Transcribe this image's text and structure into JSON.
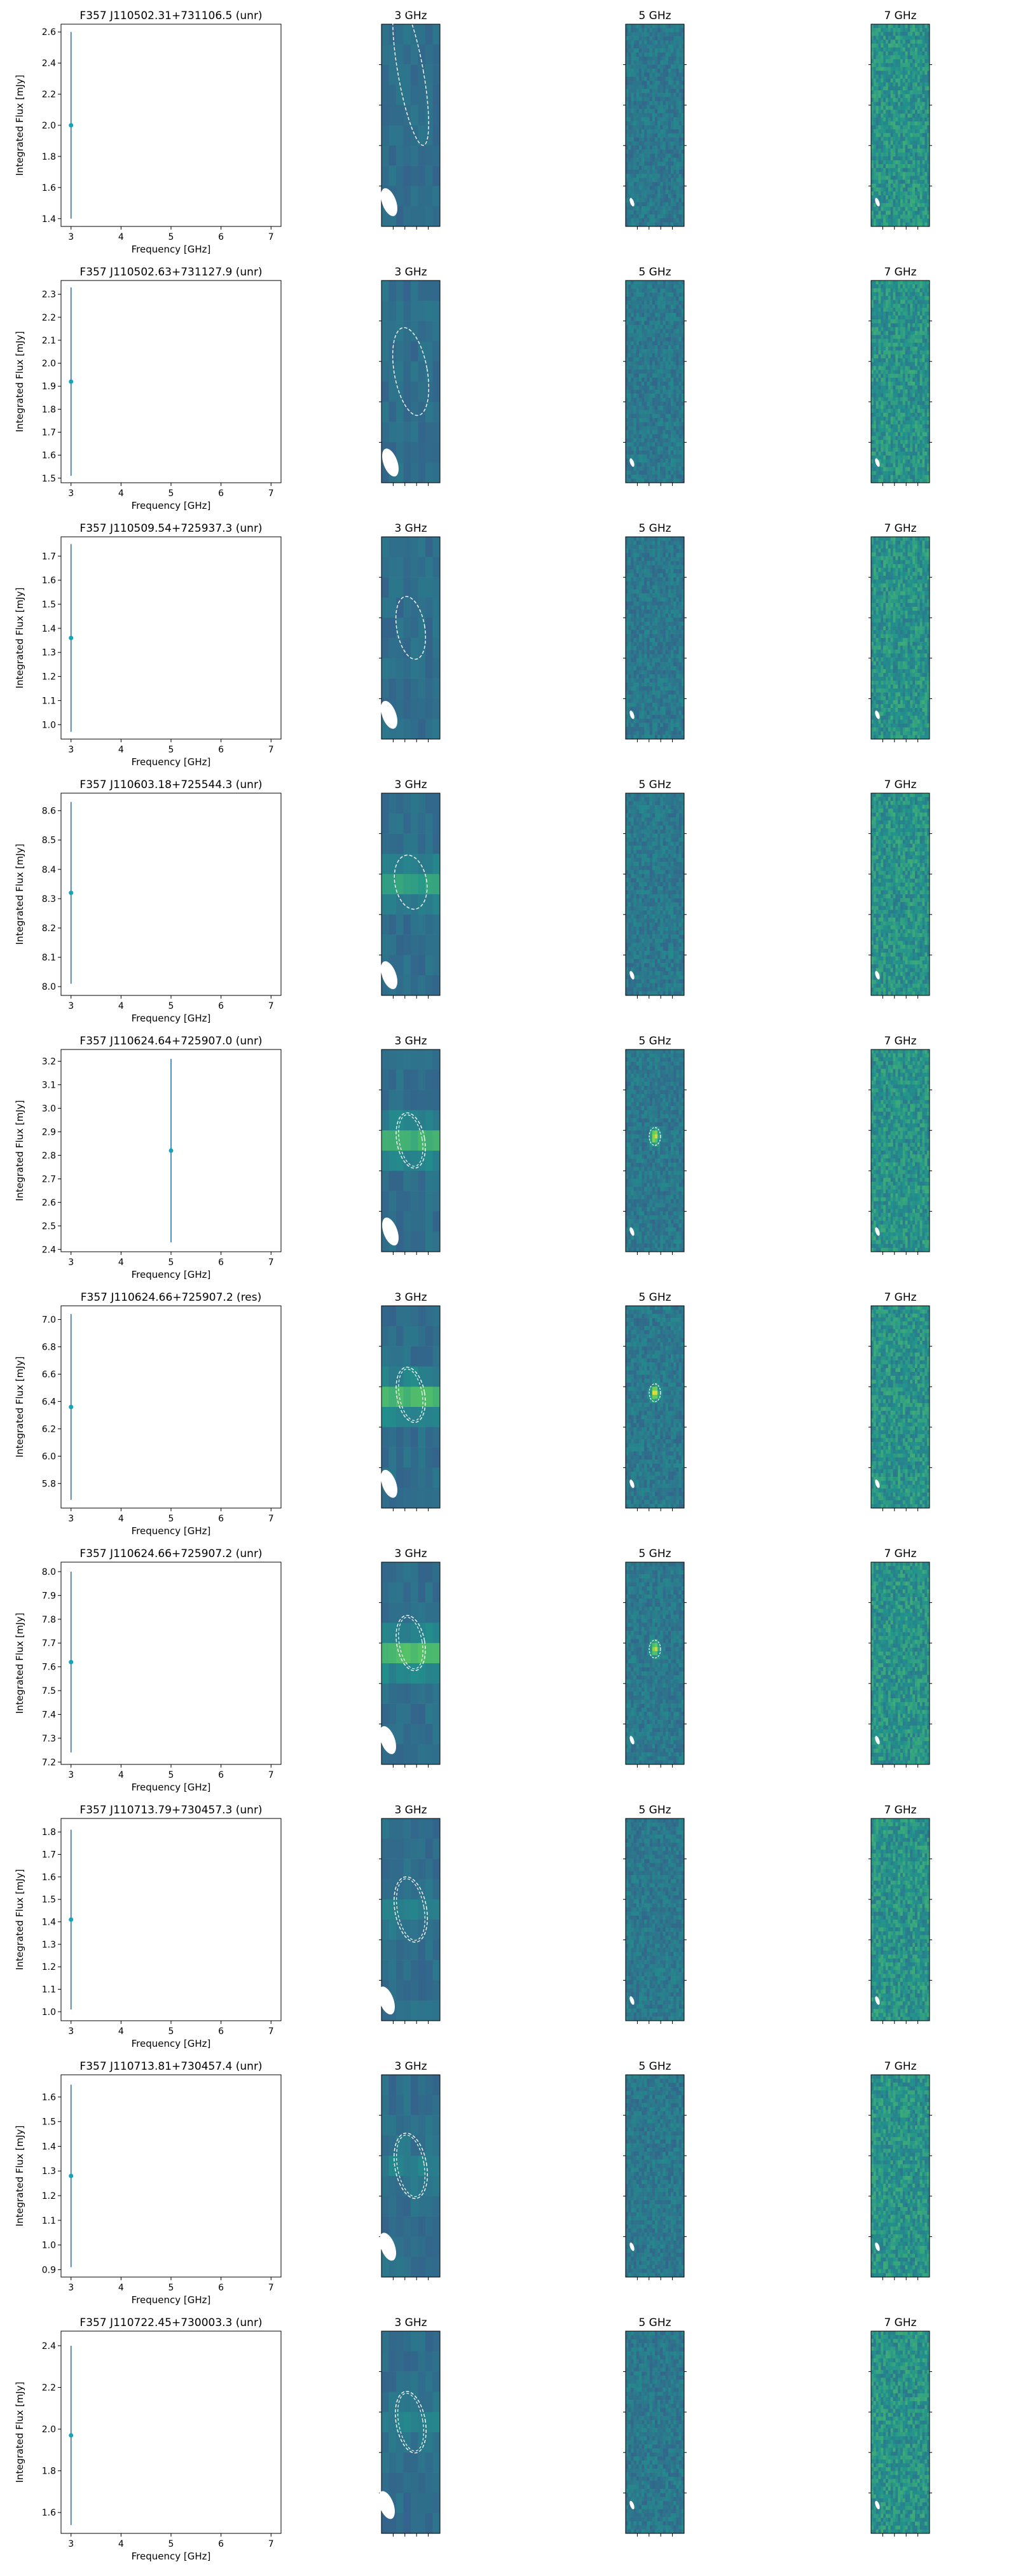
{
  "axis_labels": {
    "xlabel": "Frequency [GHz]",
    "ylabel": "Integrated Flux [mJy]"
  },
  "band_titles": [
    "3 GHz",
    "5 GHz",
    "7 GHz"
  ],
  "colors": {
    "errorbar": "#1f77b4",
    "marker": "#17a2b8",
    "image_base": "#3e6d8e",
    "ellipse": "#ffffff"
  },
  "chart_data": [
    {
      "type": "scatter",
      "title": "F357 J110502.31+731106.5 (unr)",
      "x": [
        3
      ],
      "y": [
        2.0
      ],
      "yerr": [
        0.6
      ],
      "xlim": [
        2.8,
        7.2
      ],
      "ylim": [
        1.35,
        2.65
      ],
      "xticks": [
        3,
        4,
        5,
        6,
        7
      ],
      "yticks": [
        "1.4",
        "1.6",
        "1.8",
        "2.0",
        "2.2",
        "2.4",
        "2.6"
      ]
    },
    {
      "type": "scatter",
      "title": "F357 J110502.63+731127.9 (unr)",
      "x": [
        3
      ],
      "y": [
        1.92
      ],
      "yerr": [
        0.41
      ],
      "xlim": [
        2.8,
        7.2
      ],
      "ylim": [
        1.48,
        2.36
      ],
      "xticks": [
        3,
        4,
        5,
        6,
        7
      ],
      "yticks": [
        "1.5",
        "1.6",
        "1.7",
        "1.8",
        "1.9",
        "2.0",
        "2.1",
        "2.2",
        "2.3"
      ]
    },
    {
      "type": "scatter",
      "title": "F357 J110509.54+725937.3 (unr)",
      "x": [
        3
      ],
      "y": [
        1.36
      ],
      "yerr": [
        0.39
      ],
      "xlim": [
        2.8,
        7.2
      ],
      "ylim": [
        0.94,
        1.78
      ],
      "xticks": [
        3,
        4,
        5,
        6,
        7
      ],
      "yticks": [
        "1.0",
        "1.1",
        "1.2",
        "1.3",
        "1.4",
        "1.5",
        "1.6",
        "1.7"
      ]
    },
    {
      "type": "scatter",
      "title": "F357 J110603.18+725544.3 (unr)",
      "x": [
        3
      ],
      "y": [
        8.32
      ],
      "yerr": [
        0.31
      ],
      "xlim": [
        2.8,
        7.2
      ],
      "ylim": [
        7.97,
        8.66
      ],
      "xticks": [
        3,
        4,
        5,
        6,
        7
      ],
      "yticks": [
        "8.0",
        "8.1",
        "8.2",
        "8.3",
        "8.4",
        "8.5",
        "8.6"
      ]
    },
    {
      "type": "scatter",
      "title": "F357 J110624.64+725907.0 (unr)",
      "x": [
        5
      ],
      "y": [
        2.82
      ],
      "yerr": [
        0.39
      ],
      "xlim": [
        2.8,
        7.2
      ],
      "ylim": [
        2.39,
        3.25
      ],
      "xticks": [
        3,
        4,
        5,
        6,
        7
      ],
      "yticks": [
        "2.4",
        "2.5",
        "2.6",
        "2.7",
        "2.8",
        "2.9",
        "3.0",
        "3.1",
        "3.2"
      ]
    },
    {
      "type": "scatter",
      "title": "F357 J110624.66+725907.2 (res)",
      "x": [
        3
      ],
      "y": [
        6.36
      ],
      "yerr": [
        0.68
      ],
      "xlim": [
        2.8,
        7.2
      ],
      "ylim": [
        5.62,
        7.1
      ],
      "xticks": [
        3,
        4,
        5,
        6,
        7
      ],
      "yticks": [
        "5.8",
        "6.0",
        "6.2",
        "6.4",
        "6.6",
        "6.8",
        "7.0"
      ]
    },
    {
      "type": "scatter",
      "title": "F357 J110624.66+725907.2 (unr)",
      "x": [
        3
      ],
      "y": [
        7.62
      ],
      "yerr": [
        0.38
      ],
      "xlim": [
        2.8,
        7.2
      ],
      "ylim": [
        7.19,
        8.04
      ],
      "xticks": [
        3,
        4,
        5,
        6,
        7
      ],
      "yticks": [
        "7.2",
        "7.3",
        "7.4",
        "7.5",
        "7.6",
        "7.7",
        "7.8",
        "7.9",
        "8.0"
      ]
    },
    {
      "type": "scatter",
      "title": "F357 J110713.79+730457.3 (unr)",
      "x": [
        3
      ],
      "y": [
        1.41
      ],
      "yerr": [
        0.4
      ],
      "xlim": [
        2.8,
        7.2
      ],
      "ylim": [
        0.96,
        1.86
      ],
      "xticks": [
        3,
        4,
        5,
        6,
        7
      ],
      "yticks": [
        "1.0",
        "1.1",
        "1.2",
        "1.3",
        "1.4",
        "1.5",
        "1.6",
        "1.7",
        "1.8"
      ]
    },
    {
      "type": "scatter",
      "title": "F357 J110713.81+730457.4 (unr)",
      "x": [
        3
      ],
      "y": [
        1.28
      ],
      "yerr": [
        0.37
      ],
      "xlim": [
        2.8,
        7.2
      ],
      "ylim": [
        0.87,
        1.69
      ],
      "xticks": [
        3,
        4,
        5,
        6,
        7
      ],
      "yticks": [
        "0.9",
        "1.0",
        "1.1",
        "1.2",
        "1.3",
        "1.4",
        "1.5",
        "1.6"
      ]
    },
    {
      "type": "scatter",
      "title": "F357 J110722.45+730003.3 (unr)",
      "x": [
        3
      ],
      "y": [
        1.97
      ],
      "yerr": [
        0.43
      ],
      "xlim": [
        2.8,
        7.2
      ],
      "ylim": [
        1.5,
        2.47
      ],
      "xticks": [
        3,
        4,
        5,
        6,
        7
      ],
      "yticks": [
        "1.6",
        "1.8",
        "2.0",
        "2.2",
        "2.4"
      ]
    }
  ]
}
